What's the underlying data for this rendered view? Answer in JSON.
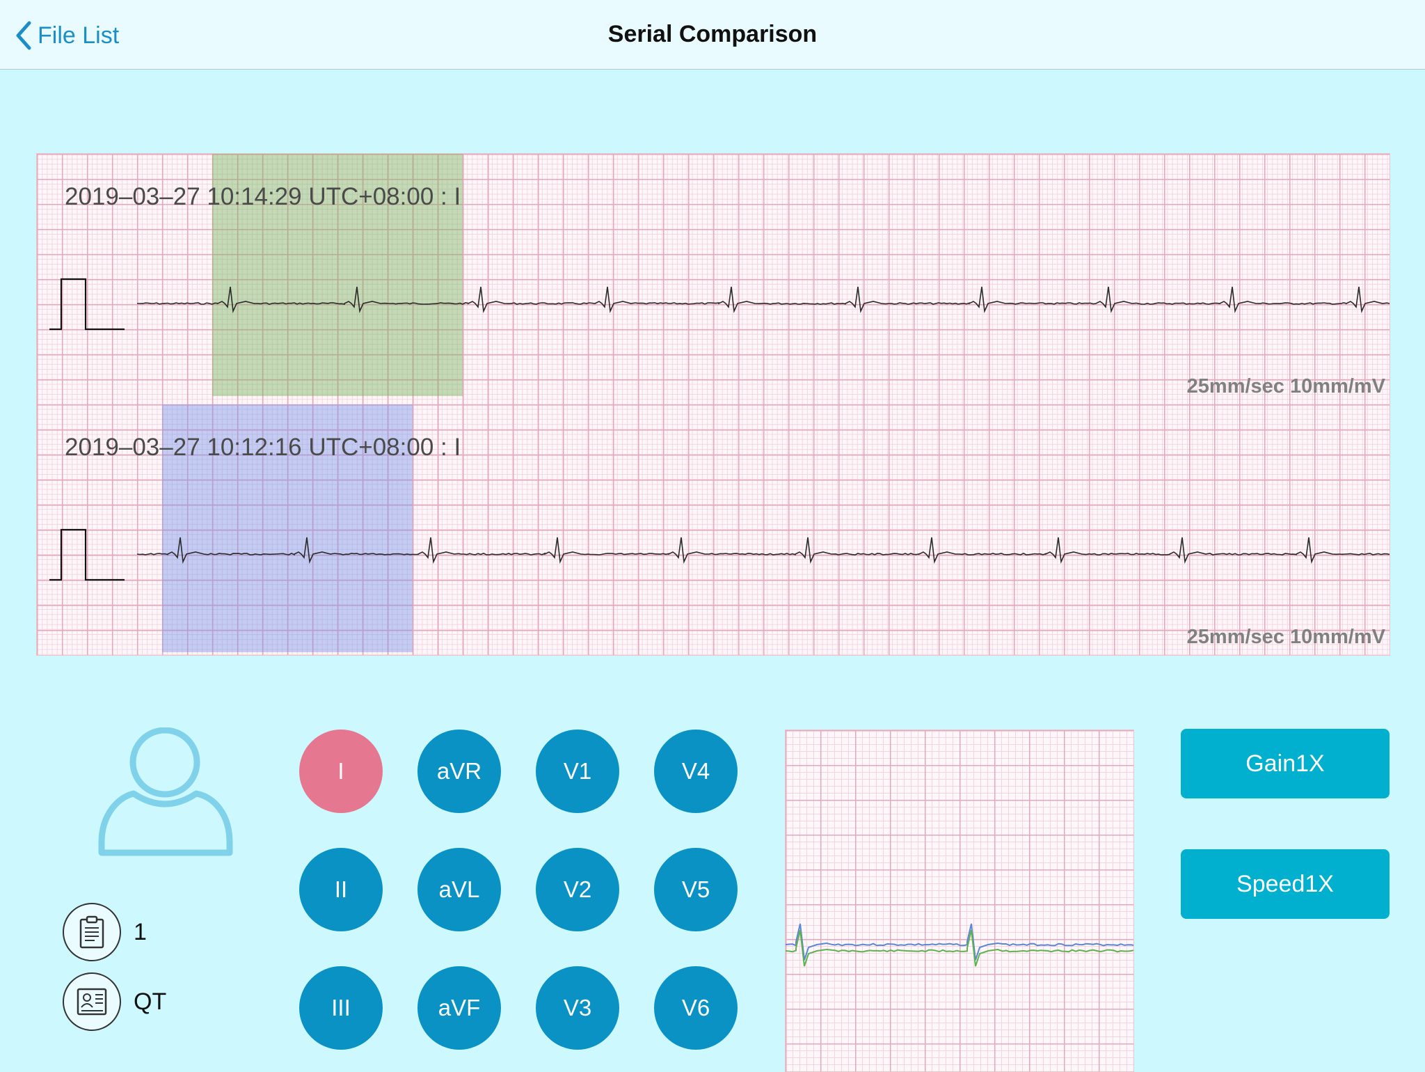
{
  "nav": {
    "back_label": "File List",
    "title": "Serial Comparison"
  },
  "strips": [
    {
      "label": "2019–03–27 10:14:29 UTC+08:00 : I",
      "scale": "25mm/sec 10mm/mV",
      "highlight_color": "#7ab664"
    },
    {
      "label": "2019–03–27 10:12:16 UTC+08:00 : I",
      "scale": "25mm/sec 10mm/mV",
      "highlight_color": "#7d96eb"
    }
  ],
  "patient": {
    "id_value": "1",
    "qt_label": "QT"
  },
  "leads": [
    "I",
    "aVR",
    "V1",
    "V4",
    "II",
    "aVL",
    "V2",
    "V5",
    "III",
    "aVF",
    "V3",
    "V6"
  ],
  "selected_lead": "I",
  "buttons": {
    "gain": "Gain1X",
    "speed": "Speed1X"
  },
  "colors": {
    "accent": "#0b92c4",
    "selected_lead": "#e57890",
    "action_button": "#00b0ce",
    "background": "#cdf8fd",
    "trace_overlay_1": "#5a86d6",
    "trace_overlay_2": "#5cb34e"
  },
  "icons": {
    "back": "chevron-left-icon",
    "avatar": "user-avatar-icon",
    "report": "clipboard-icon",
    "qt": "id-card-icon"
  }
}
